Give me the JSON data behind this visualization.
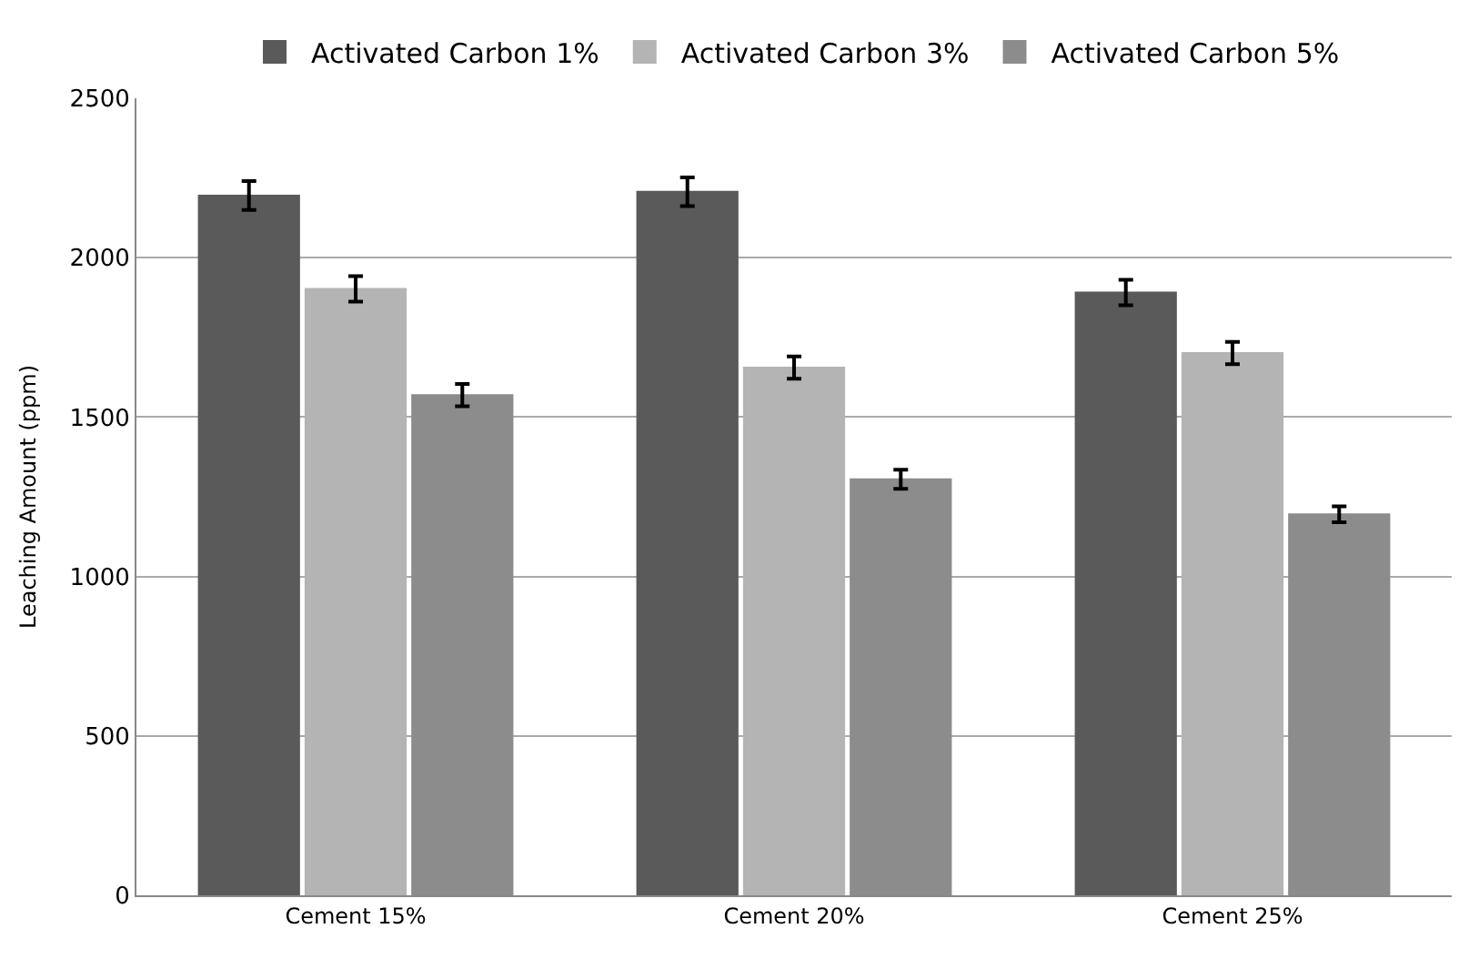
{
  "chart_data": {
    "type": "bar",
    "ylabel": "Leaching Amount (ppm)",
    "categories": [
      "Cement 15%",
      "Cement 20%",
      "Cement 25%"
    ],
    "series": [
      {
        "name": "Activated Carbon 1%",
        "color": "#5a5a5a",
        "values": [
          2195,
          2207,
          1891
        ],
        "errors": [
          45,
          45,
          40
        ]
      },
      {
        "name": "Activated Carbon 3%",
        "color": "#b4b4b4",
        "values": [
          1902,
          1655,
          1701
        ],
        "errors": [
          40,
          35,
          35
        ]
      },
      {
        "name": "Activated Carbon 5%",
        "color": "#8c8c8c",
        "values": [
          1569,
          1305,
          1195
        ],
        "errors": [
          35,
          30,
          25
        ]
      }
    ],
    "ylim": [
      0,
      2500
    ],
    "yticks": [
      0,
      500,
      1000,
      1500,
      2000,
      2500
    ],
    "grid": "y",
    "legend": "top"
  }
}
